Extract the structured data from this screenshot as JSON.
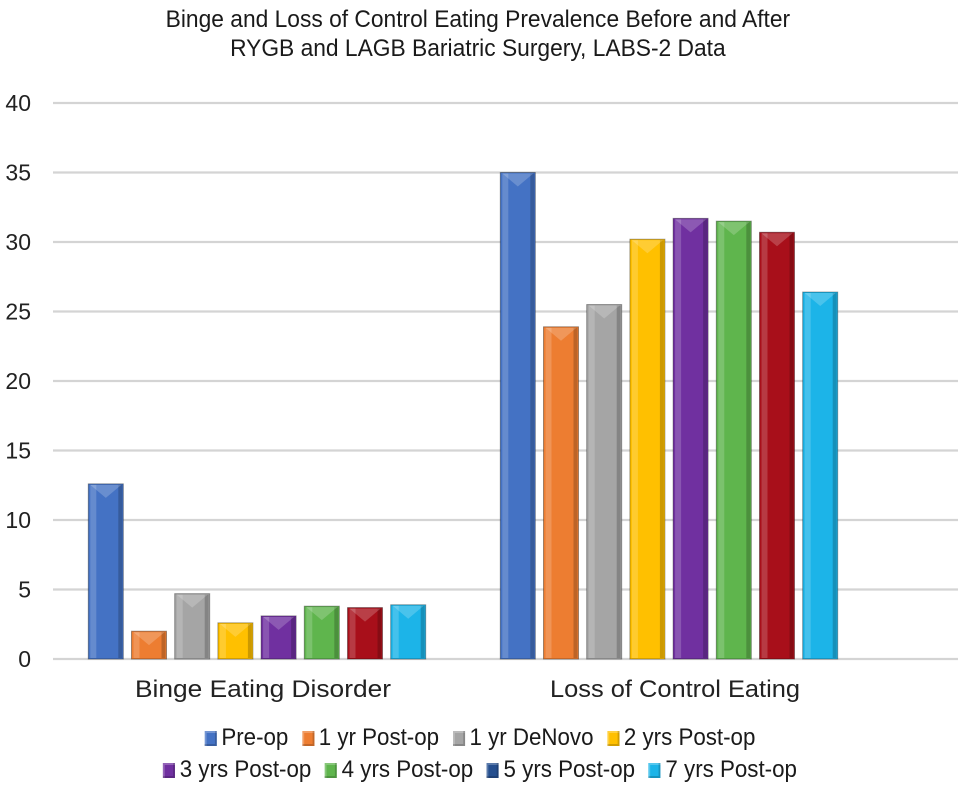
{
  "chart_data": {
    "type": "bar",
    "title": "Binge and Loss of Control Eating Prevalence Before and After RYGB and LAGB Bariatric Surgery, LABS-2 Data",
    "title_lines": [
      "Binge and Loss of Control Eating Prevalence Before and After",
      "RYGB and LAGB Bariatric Surgery, LABS-2 Data"
    ],
    "xlabel": "",
    "ylabel": "",
    "ylim": [
      0,
      40
    ],
    "yticks": [
      0,
      5,
      10,
      15,
      20,
      25,
      30,
      35,
      40
    ],
    "grid": true,
    "legend_position": "bottom",
    "categories": [
      "Binge Eating Disorder",
      "Loss of Control Eating"
    ],
    "series": [
      {
        "name": "Pre-op",
        "bar_color": "#4472c4",
        "legend_color": "#4472c4",
        "values": [
          12.6,
          35.0
        ]
      },
      {
        "name": "1 yr Post-op",
        "bar_color": "#ed7d31",
        "legend_color": "#ed7d31",
        "values": [
          2.0,
          23.9
        ]
      },
      {
        "name": "1 yr DeNovo",
        "bar_color": "#a5a5a5",
        "legend_color": "#a5a5a5",
        "values": [
          4.7,
          25.5
        ]
      },
      {
        "name": "2 yrs Post-op",
        "bar_color": "#ffc000",
        "legend_color": "#ffc000",
        "values": [
          2.6,
          30.2
        ]
      },
      {
        "name": "3 yrs Post-op",
        "bar_color": "#7030a0",
        "legend_color": "#7030a0",
        "values": [
          3.1,
          31.7
        ]
      },
      {
        "name": "4 yrs Post-op",
        "bar_color": "#5fb54d",
        "legend_color": "#5fb54d",
        "values": [
          3.8,
          31.5
        ]
      },
      {
        "name": "5 yrs Post-op",
        "bar_color": "#a80f1a",
        "legend_color": "#254f8f",
        "values": [
          3.7,
          30.7
        ]
      },
      {
        "name": "7 yrs Post-op",
        "bar_color": "#1cb4e8",
        "legend_color": "#1cb4e8",
        "values": [
          3.9,
          26.4
        ]
      }
    ]
  }
}
